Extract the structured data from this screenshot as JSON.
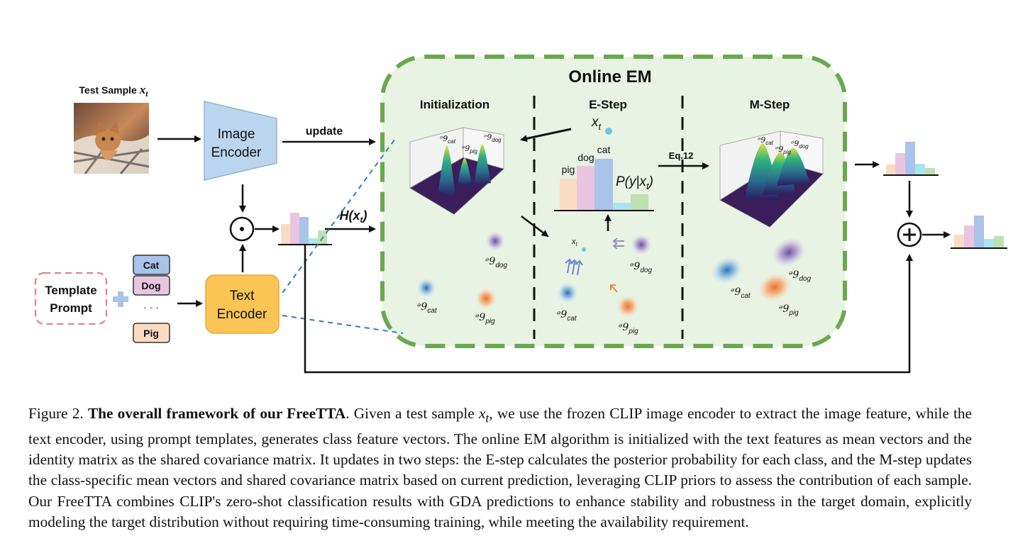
{
  "figure": {
    "test_sample_label": "Test Sample ",
    "test_sample_var": "x",
    "test_sample_sub": "t",
    "image_encoder_line1": "Image",
    "image_encoder_line2": "Encoder",
    "text_encoder_line1": "Text",
    "text_encoder_line2": "Encoder",
    "template_line1": "Template",
    "template_line2": "Prompt",
    "classes": [
      "Cat",
      "Dog",
      "Pig"
    ],
    "ellipsis": "· · ·",
    "update_label": "update",
    "h_label": "H(x",
    "h_sub": "t",
    "h_close": ")",
    "em_title": "Online EM",
    "init_label": "Initialization",
    "estep_label": "E-Step",
    "mstep_label": "M-Step",
    "eq_label": "Eq.12",
    "xt_var": "x",
    "xt_sub": "t",
    "bar_labels": [
      "pig",
      "dog",
      "cat"
    ],
    "posterior_label": "P(y|x",
    "posterior_sub": "t",
    "posterior_close": ")",
    "gaussian_symbol": "ᵊ9",
    "gaussian_subs": [
      "cat",
      "dog",
      "pig"
    ],
    "colors": {
      "em_bg": "#e8f3e3",
      "em_border": "#6aa84f",
      "encoder_blue": "#bcd5ee",
      "text_encoder_orange": "#fbc556",
      "template_border": "#e87f86",
      "bar_orange": "#fbdcc2",
      "bar_pink": "#eac4e1",
      "bar_blue": "#a9c3ea",
      "bar_cyan": "#a8e6ef",
      "bar_green": "#bfe0b0",
      "dashed_blue": "#2f7fc0"
    }
  },
  "caption": {
    "prefix": "Figure 2. ",
    "title": "The overall framework of our FreeTTA",
    "lead": ". Given a test sample ",
    "var": "x",
    "var_sub": "t",
    "body": ", we use the frozen CLIP image encoder to extract the image feature, while the text encoder, using prompt templates, generates class feature vectors. The online EM algorithm is initialized with the text features as mean vectors and the identity matrix as the shared covariance matrix. It updates in two steps: the E-step calculates the posterior probability for each class, and the M-step updates the class-specific mean vectors and shared covariance matrix based on current prediction, leveraging CLIP priors to assess the contribution of each sample. Our FreeTTA combines CLIP's zero-shot classification results with GDA predictions to enhance stability and robustness in the target domain, explicitly modeling the target distribution without requiring time-consuming training, while meeting the availability requirement."
  }
}
